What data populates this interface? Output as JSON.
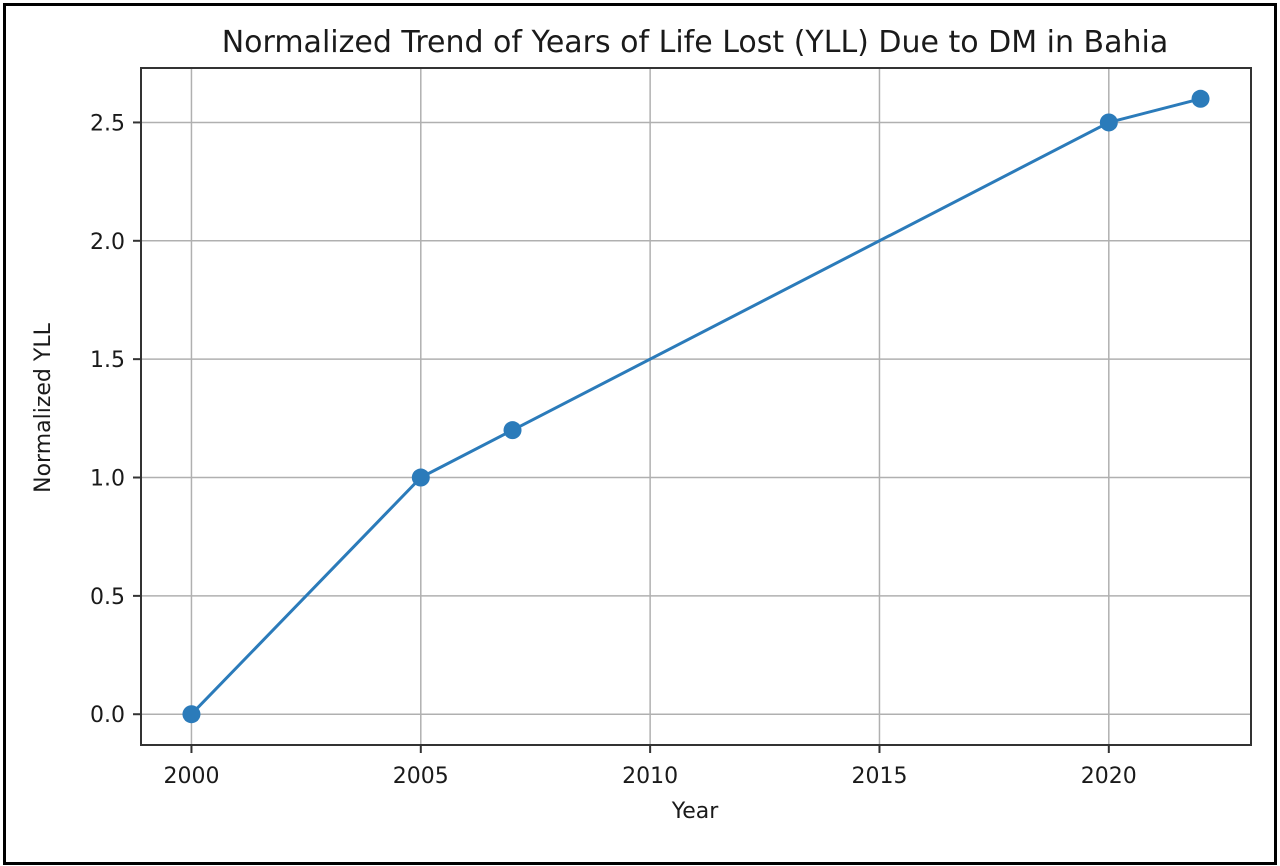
{
  "chart_data": {
    "type": "line",
    "title": "Normalized Trend of Years of Life Lost (YLL) Due to DM in Bahia",
    "xlabel": "Year",
    "ylabel": "Normalized YLL",
    "x": [
      2000,
      2005,
      2007,
      2020,
      2022
    ],
    "series": [
      {
        "values": [
          0.0,
          1.0,
          1.2,
          2.5,
          2.6
        ]
      }
    ],
    "xlim": [
      1998.9,
      2023.1
    ],
    "ylim": [
      -0.13,
      2.73
    ],
    "xticks": [
      2000,
      2005,
      2010,
      2015,
      2020
    ],
    "xtick_labels": [
      "2000",
      "2005",
      "2010",
      "2015",
      "2020"
    ],
    "yticks": [
      0.0,
      0.5,
      1.0,
      1.5,
      2.0,
      2.5
    ],
    "ytick_labels": [
      "0.0",
      "0.5",
      "1.0",
      "1.5",
      "2.0",
      "2.5"
    ],
    "grid": true,
    "marker": "circle",
    "color": "#2b7bba"
  }
}
